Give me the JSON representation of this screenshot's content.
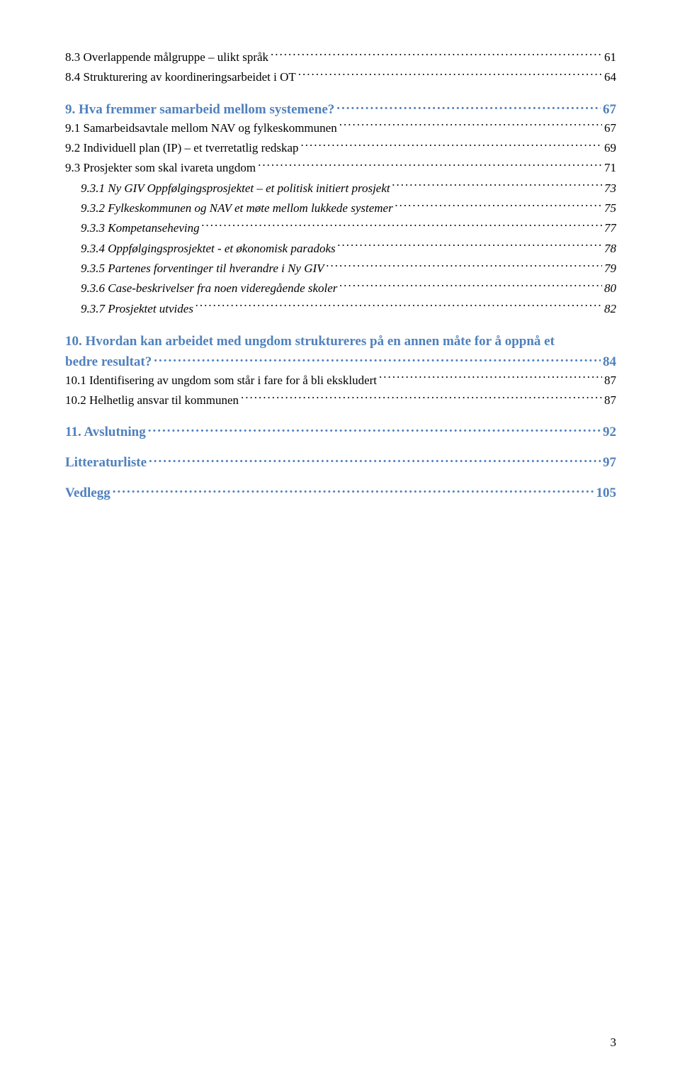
{
  "entries": [
    {
      "level": 2,
      "label": "8.3 Overlappende målgruppe – ulikt språk",
      "page": "61",
      "first": true
    },
    {
      "level": 2,
      "label": "8.4 Strukturering av koordineringsarbeidet i OT",
      "page": "64"
    },
    {
      "level": 1,
      "label": "9. Hva fremmer samarbeid mellom systemene?",
      "page": "67"
    },
    {
      "level": 2,
      "label": "9.1 Samarbeidsavtale mellom NAV og fylkeskommunen",
      "page": "67"
    },
    {
      "level": 2,
      "label": "9.2 Individuell plan (IP) – et tverretatlig redskap",
      "page": "69"
    },
    {
      "level": 2,
      "label": "9.3 Prosjekter som skal ivareta ungdom",
      "page": "71"
    },
    {
      "level": 3,
      "label": "9.3.1 Ny GIV Oppfølgingsprosjektet – et politisk initiert prosjekt",
      "page": "73"
    },
    {
      "level": 3,
      "label": "9.3.2  Fylkeskommunen og NAV et møte mellom lukkede systemer",
      "page": "75"
    },
    {
      "level": 3,
      "label": "9.3.3 Kompetanseheving",
      "page": "77"
    },
    {
      "level": 3,
      "label": "9.3.4 Oppfølgingsprosjektet - et økonomisk paradoks",
      "page": "78"
    },
    {
      "level": 3,
      "label": "9.3.5 Partenes forventinger til hverandre i Ny GIV",
      "page": "79"
    },
    {
      "level": 3,
      "label": "9.3.6 Case-beskrivelser fra noen videregående skoler",
      "page": "80"
    },
    {
      "level": 3,
      "label": "9.3.7 Prosjektet utvides",
      "page": "82"
    },
    {
      "level": 1,
      "label": "10. Hvordan kan arbeidet med ungdom struktureres på en annen måte for å oppnå et bedre resultat?",
      "page": "84",
      "wrap": true
    },
    {
      "level": 2,
      "label": "10.1 Identifisering av ungdom som står i fare for å bli ekskludert",
      "page": "87"
    },
    {
      "level": 2,
      "label": "10.2 Helhetlig ansvar til kommunen",
      "page": "87"
    },
    {
      "level": 1,
      "label": "11. Avslutning",
      "page": "92"
    },
    {
      "level": 1,
      "label": "Litteraturliste",
      "page": "97"
    },
    {
      "level": 1,
      "label": "Vedlegg",
      "page": "105"
    }
  ],
  "pageNumber": "3",
  "colors": {
    "heading": "#4f81bd",
    "body": "#000000",
    "background": "#ffffff"
  },
  "typography": {
    "font_family": "Times New Roman",
    "level1_fontsize": 19,
    "level2_fontsize": 17,
    "level3_fontsize": 17
  }
}
